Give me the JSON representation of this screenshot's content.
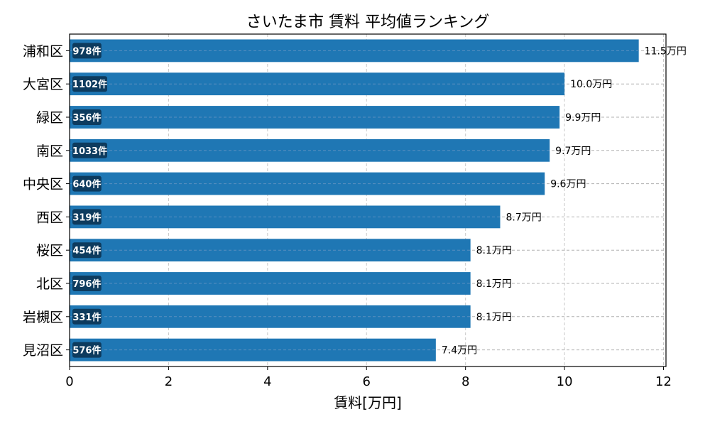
{
  "chart_data": {
    "type": "bar",
    "orientation": "horizontal",
    "title": "さいたま市 賃料 平均値ランキング",
    "xlabel": "賃料[万円]",
    "ylabel": "",
    "xlim": [
      0,
      12.05
    ],
    "xticks": [
      0,
      2,
      4,
      6,
      8,
      10,
      12
    ],
    "grid": true,
    "bar_color": "#1f77b4",
    "count_badge_color": "#0d3b5e",
    "value_suffix": "万円",
    "count_suffix": "件",
    "categories": [
      "浦和区",
      "大宮区",
      "緑区",
      "南区",
      "中央区",
      "西区",
      "桜区",
      "北区",
      "岩槻区",
      "見沼区"
    ],
    "values": [
      11.5,
      10.0,
      9.9,
      9.7,
      9.6,
      8.7,
      8.1,
      8.1,
      8.1,
      7.4
    ],
    "value_labels": [
      "11.5万円",
      "10.0万円",
      "9.9万円",
      "9.7万円",
      "9.6万円",
      "8.7万円",
      "8.1万円",
      "8.1万円",
      "8.1万円",
      "7.4万円"
    ],
    "counts": [
      978,
      1102,
      356,
      1033,
      640,
      319,
      454,
      796,
      331,
      576
    ],
    "count_labels": [
      "978件",
      "1102件",
      "356件",
      "1033件",
      "640件",
      "319件",
      "454件",
      "796件",
      "331件",
      "576件"
    ]
  }
}
